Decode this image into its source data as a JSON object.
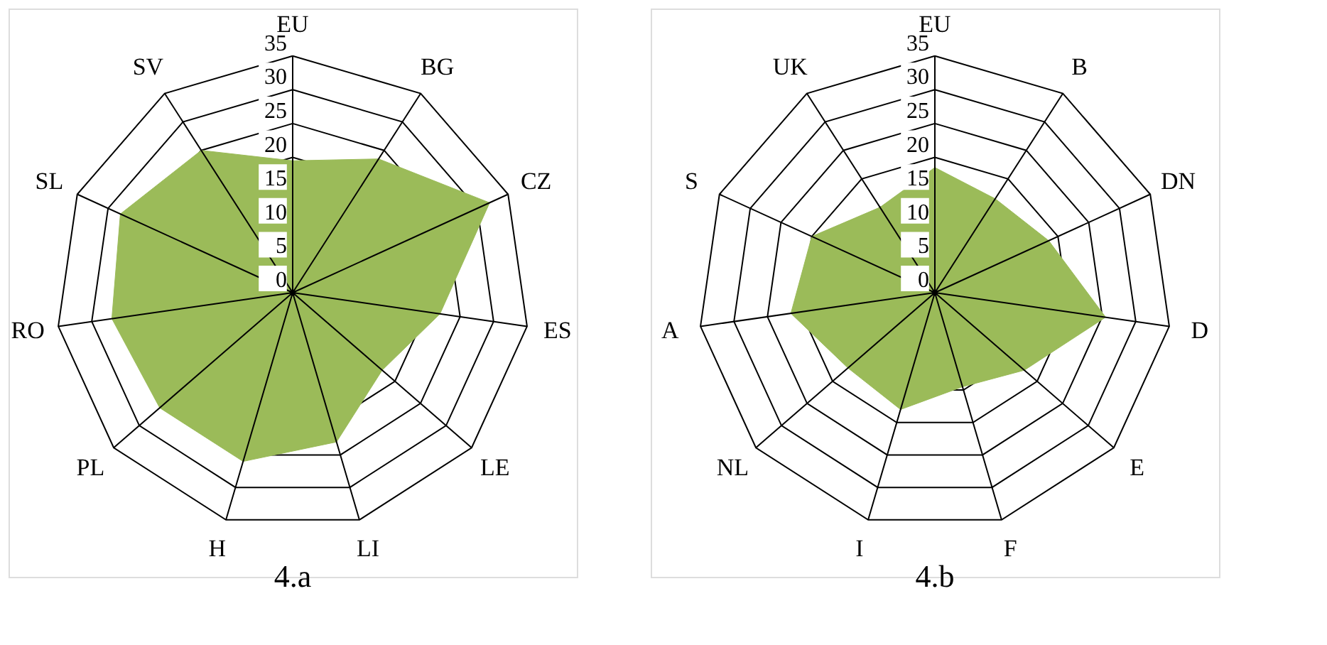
{
  "chart_data": [
    {
      "type": "radar",
      "title": "4.a",
      "categories": [
        "EU",
        "BG",
        "CZ",
        "ES",
        "LE",
        "LI",
        "H",
        "PL",
        "RO",
        "SL",
        "SV"
      ],
      "series": [
        {
          "color": "#9bbb59",
          "values": [
            19.5,
            23.5,
            32,
            22,
            17.5,
            23,
            26,
            26,
            27,
            28,
            25
          ]
        }
      ],
      "ylim": [
        0,
        35
      ],
      "yticks": [
        0,
        5,
        10,
        15,
        20,
        25,
        30,
        35
      ],
      "grid": true
    },
    {
      "type": "radar",
      "title": "4.b",
      "categories": [
        "EU",
        "B",
        "DN",
        "D",
        "E",
        "F",
        "I",
        "NL",
        "A",
        "S",
        "UK"
      ],
      "series": [
        {
          "color": "#9bbb59",
          "values": [
            18.5,
            16.5,
            18.5,
            25.5,
            17.5,
            14.5,
            18,
            17,
            21.5,
            20,
            15
          ]
        }
      ],
      "ylim": [
        0,
        35
      ],
      "yticks": [
        0,
        5,
        10,
        15,
        20,
        25,
        30,
        35
      ],
      "grid": true
    }
  ]
}
